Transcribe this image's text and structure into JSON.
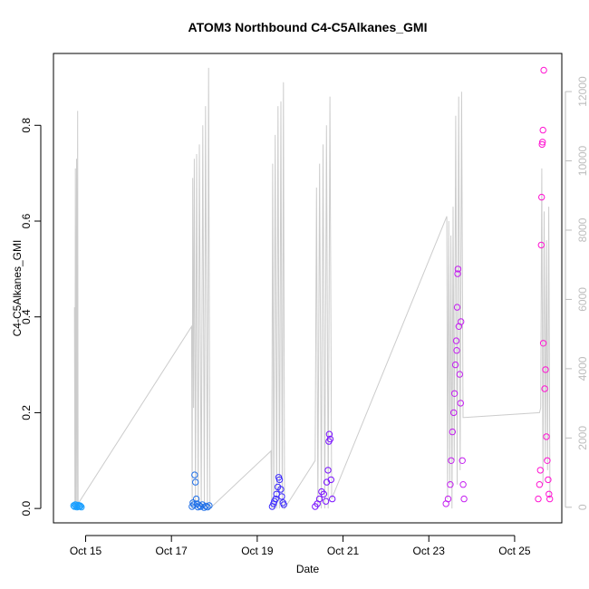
{
  "chart_data": {
    "type": "scatter",
    "title": "ATOM3 Northbound C4-C5Alkanes_GMI",
    "xlabel": "Date",
    "ylabel": "C4-C5Alkanes_GMI",
    "x_tick_labels": [
      "Oct 15",
      "Oct 17",
      "Oct 19",
      "Oct 21",
      "Oct 23",
      "Oct 25"
    ],
    "y_ticks": [
      0.0,
      0.2,
      0.4,
      0.6,
      0.8
    ],
    "y_tick_labels": [
      "0.0",
      "0.2",
      "0.4",
      "0.6",
      "0.8"
    ],
    "ylim": [
      -0.03,
      0.95
    ],
    "right_axis": {
      "color": "#bdbdbd",
      "ticks": [
        0,
        2000,
        4000,
        6000,
        8000,
        10000,
        12000
      ],
      "tick_labels": [
        "0",
        "2000",
        "4000",
        "6000",
        "8000",
        "10000",
        "12000"
      ],
      "ylim": [
        -450,
        13100
      ]
    },
    "xlim_days": [
      14.25,
      26.1
    ],
    "secondary_line_color": "#cccccc",
    "marker": "open-circle",
    "series": [
      {
        "color": "#1a9fff",
        "points": [
          [
            14.72,
            0.006
          ],
          [
            14.74,
            0.004
          ],
          [
            14.76,
            0.008
          ],
          [
            14.78,
            0.005
          ],
          [
            14.8,
            0.003
          ],
          [
            14.82,
            0.007
          ],
          [
            14.84,
            0.004
          ],
          [
            14.86,
            0.006
          ],
          [
            14.88,
            0.005
          ],
          [
            14.9,
            0.003
          ]
        ]
      },
      {
        "color": "#1f6fe8",
        "points": [
          [
            17.48,
            0.004
          ],
          [
            17.5,
            0.012
          ],
          [
            17.52,
            0.008
          ],
          [
            17.54,
            0.07
          ],
          [
            17.56,
            0.055
          ],
          [
            17.58,
            0.02
          ],
          [
            17.6,
            0.01
          ],
          [
            17.62,
            0.003
          ],
          [
            17.65,
            0.006
          ],
          [
            17.68,
            0.004
          ],
          [
            17.72,
            0.008
          ],
          [
            17.76,
            0.002
          ],
          [
            17.8,
            0.005
          ],
          [
            17.84,
            0.003
          ],
          [
            17.88,
            0.006
          ]
        ]
      },
      {
        "color": "#3d2bff",
        "points": [
          [
            19.35,
            0.004
          ],
          [
            19.38,
            0.01
          ],
          [
            19.4,
            0.015
          ],
          [
            19.43,
            0.02
          ],
          [
            19.45,
            0.03
          ],
          [
            19.48,
            0.045
          ],
          [
            19.5,
            0.065
          ],
          [
            19.52,
            0.06
          ],
          [
            19.55,
            0.04
          ],
          [
            19.57,
            0.025
          ],
          [
            19.6,
            0.012
          ],
          [
            19.62,
            0.008
          ]
        ]
      },
      {
        "color": "#7a12ff",
        "points": [
          [
            20.35,
            0.004
          ],
          [
            20.4,
            0.01
          ],
          [
            20.45,
            0.02
          ],
          [
            20.5,
            0.035
          ],
          [
            20.55,
            0.03
          ],
          [
            20.6,
            0.015
          ],
          [
            20.62,
            0.055
          ],
          [
            20.65,
            0.08
          ],
          [
            20.67,
            0.14
          ],
          [
            20.68,
            0.155
          ],
          [
            20.7,
            0.145
          ],
          [
            20.72,
            0.06
          ],
          [
            20.75,
            0.02
          ]
        ]
      },
      {
        "color": "#c41ef0",
        "points": [
          [
            23.4,
            0.01
          ],
          [
            23.45,
            0.02
          ],
          [
            23.5,
            0.05
          ],
          [
            23.52,
            0.1
          ],
          [
            23.55,
            0.16
          ],
          [
            23.58,
            0.2
          ],
          [
            23.6,
            0.24
          ],
          [
            23.62,
            0.3
          ],
          [
            23.64,
            0.35
          ],
          [
            23.65,
            0.33
          ],
          [
            23.66,
            0.42
          ],
          [
            23.67,
            0.49
          ],
          [
            23.68,
            0.5
          ],
          [
            23.7,
            0.38
          ],
          [
            23.72,
            0.28
          ],
          [
            23.74,
            0.22
          ],
          [
            23.75,
            0.39
          ],
          [
            23.78,
            0.1
          ],
          [
            23.8,
            0.05
          ],
          [
            23.82,
            0.02
          ]
        ]
      },
      {
        "color": "#ff14d2",
        "points": [
          [
            25.55,
            0.02
          ],
          [
            25.58,
            0.05
          ],
          [
            25.6,
            0.08
          ],
          [
            25.62,
            0.55
          ],
          [
            25.63,
            0.65
          ],
          [
            25.64,
            0.76
          ],
          [
            25.65,
            0.765
          ],
          [
            25.66,
            0.79
          ],
          [
            25.67,
            0.345
          ],
          [
            25.68,
            0.915
          ],
          [
            25.7,
            0.25
          ],
          [
            25.72,
            0.29
          ],
          [
            25.74,
            0.15
          ],
          [
            25.76,
            0.1
          ],
          [
            25.78,
            0.06
          ],
          [
            25.8,
            0.03
          ],
          [
            25.82,
            0.02
          ]
        ]
      }
    ]
  }
}
